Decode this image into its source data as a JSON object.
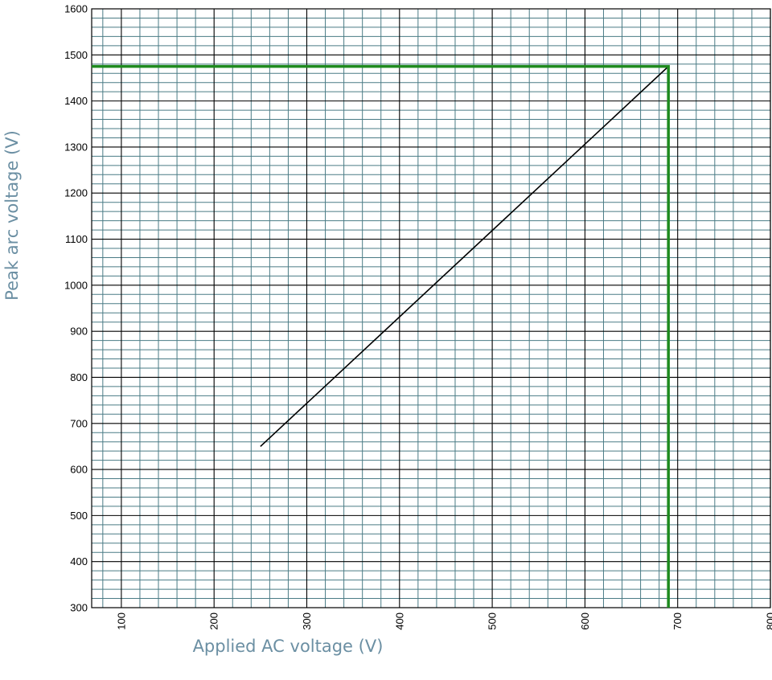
{
  "chart_data": {
    "type": "line",
    "xlabel": "Applied AC voltage (V)",
    "ylabel": "Peak arc voltage (V)",
    "xlim": [
      68,
      800
    ],
    "ylim": [
      300,
      1600
    ],
    "x_ticks": [
      "100",
      "200",
      "300",
      "400",
      "500",
      "600",
      "700",
      "800"
    ],
    "y_ticks": [
      "300",
      "400",
      "500",
      "600",
      "700",
      "800",
      "900",
      "1000",
      "1100",
      "1200",
      "1300",
      "1400",
      "1500",
      "1600"
    ],
    "x_minor_step": 20,
    "y_minor_step": 20,
    "grid": true,
    "series": [
      {
        "x": [
          250,
          690
        ],
        "y": [
          650,
          1475
        ],
        "color": "#000000"
      }
    ],
    "reference_lines": [
      {
        "x": [
          68,
          690,
          690
        ],
        "y": [
          1475,
          1475,
          300
        ],
        "color": "#1e8a1e"
      }
    ],
    "colors": {
      "minor_grid": "#4a7b85",
      "major_grid": "#000000",
      "axis_title": "#6b8fa3"
    }
  }
}
